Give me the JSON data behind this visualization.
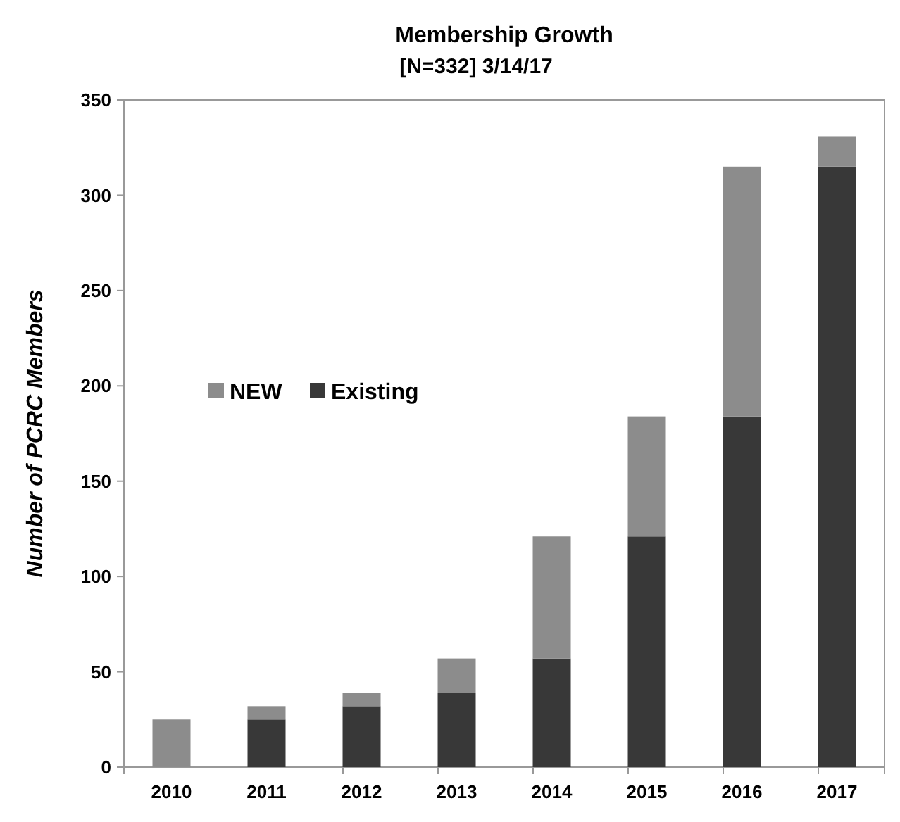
{
  "chart_data": {
    "type": "bar",
    "title": "Membership Growth",
    "subtitle": "[N=332] 3/14/17",
    "ylabel": "Number of PCRC Members",
    "categories": [
      "2010",
      "2011",
      "2012",
      "2013",
      "2014",
      "2015",
      "2016",
      "2017"
    ],
    "stacked": true,
    "series": [
      {
        "name": "Existing",
        "color": "#383838",
        "values": [
          0,
          25,
          32,
          39,
          57,
          121,
          184,
          315
        ]
      },
      {
        "name": "NEW",
        "color": "#8c8c8c",
        "values": [
          25,
          7,
          7,
          18,
          64,
          63,
          131,
          16
        ]
      }
    ],
    "ylim": [
      0,
      350
    ],
    "yticks": [
      0,
      50,
      100,
      150,
      200,
      250,
      300,
      350
    ],
    "grid": false,
    "legend": "left"
  }
}
